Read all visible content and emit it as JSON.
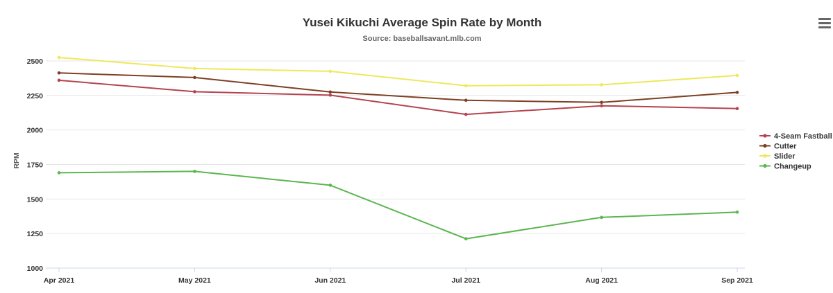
{
  "chart_data": {
    "type": "line",
    "title": "Yusei Kikuchi Average Spin Rate by Month",
    "subtitle": "Source: baseballsavant.mlb.com",
    "xlabel": "",
    "ylabel": "RPM",
    "categories": [
      "Apr 2021",
      "May 2021",
      "Jun 2021",
      "Jul 2021",
      "Aug 2021",
      "Sep 2021"
    ],
    "ylim": [
      1000,
      2600
    ],
    "yticks": [
      1000,
      1250,
      1500,
      1750,
      2000,
      2250,
      2500
    ],
    "grid": true,
    "legend_position": "right",
    "series": [
      {
        "name": "4-Seam Fastball",
        "color": "#b5424f",
        "values": [
          2360,
          2277,
          2252,
          2113,
          2175,
          2155
        ]
      },
      {
        "name": "Cutter",
        "color": "#7d3f22",
        "values": [
          2413,
          2380,
          2275,
          2215,
          2200,
          2272
        ]
      },
      {
        "name": "Slider",
        "color": "#eee85a",
        "values": [
          2525,
          2445,
          2425,
          2320,
          2327,
          2395
        ]
      },
      {
        "name": "Changeup",
        "color": "#5ab64e",
        "values": [
          1690,
          1700,
          1600,
          1212,
          1367,
          1405
        ]
      }
    ]
  },
  "menu": {
    "icon": "hamburger-menu-icon"
  }
}
